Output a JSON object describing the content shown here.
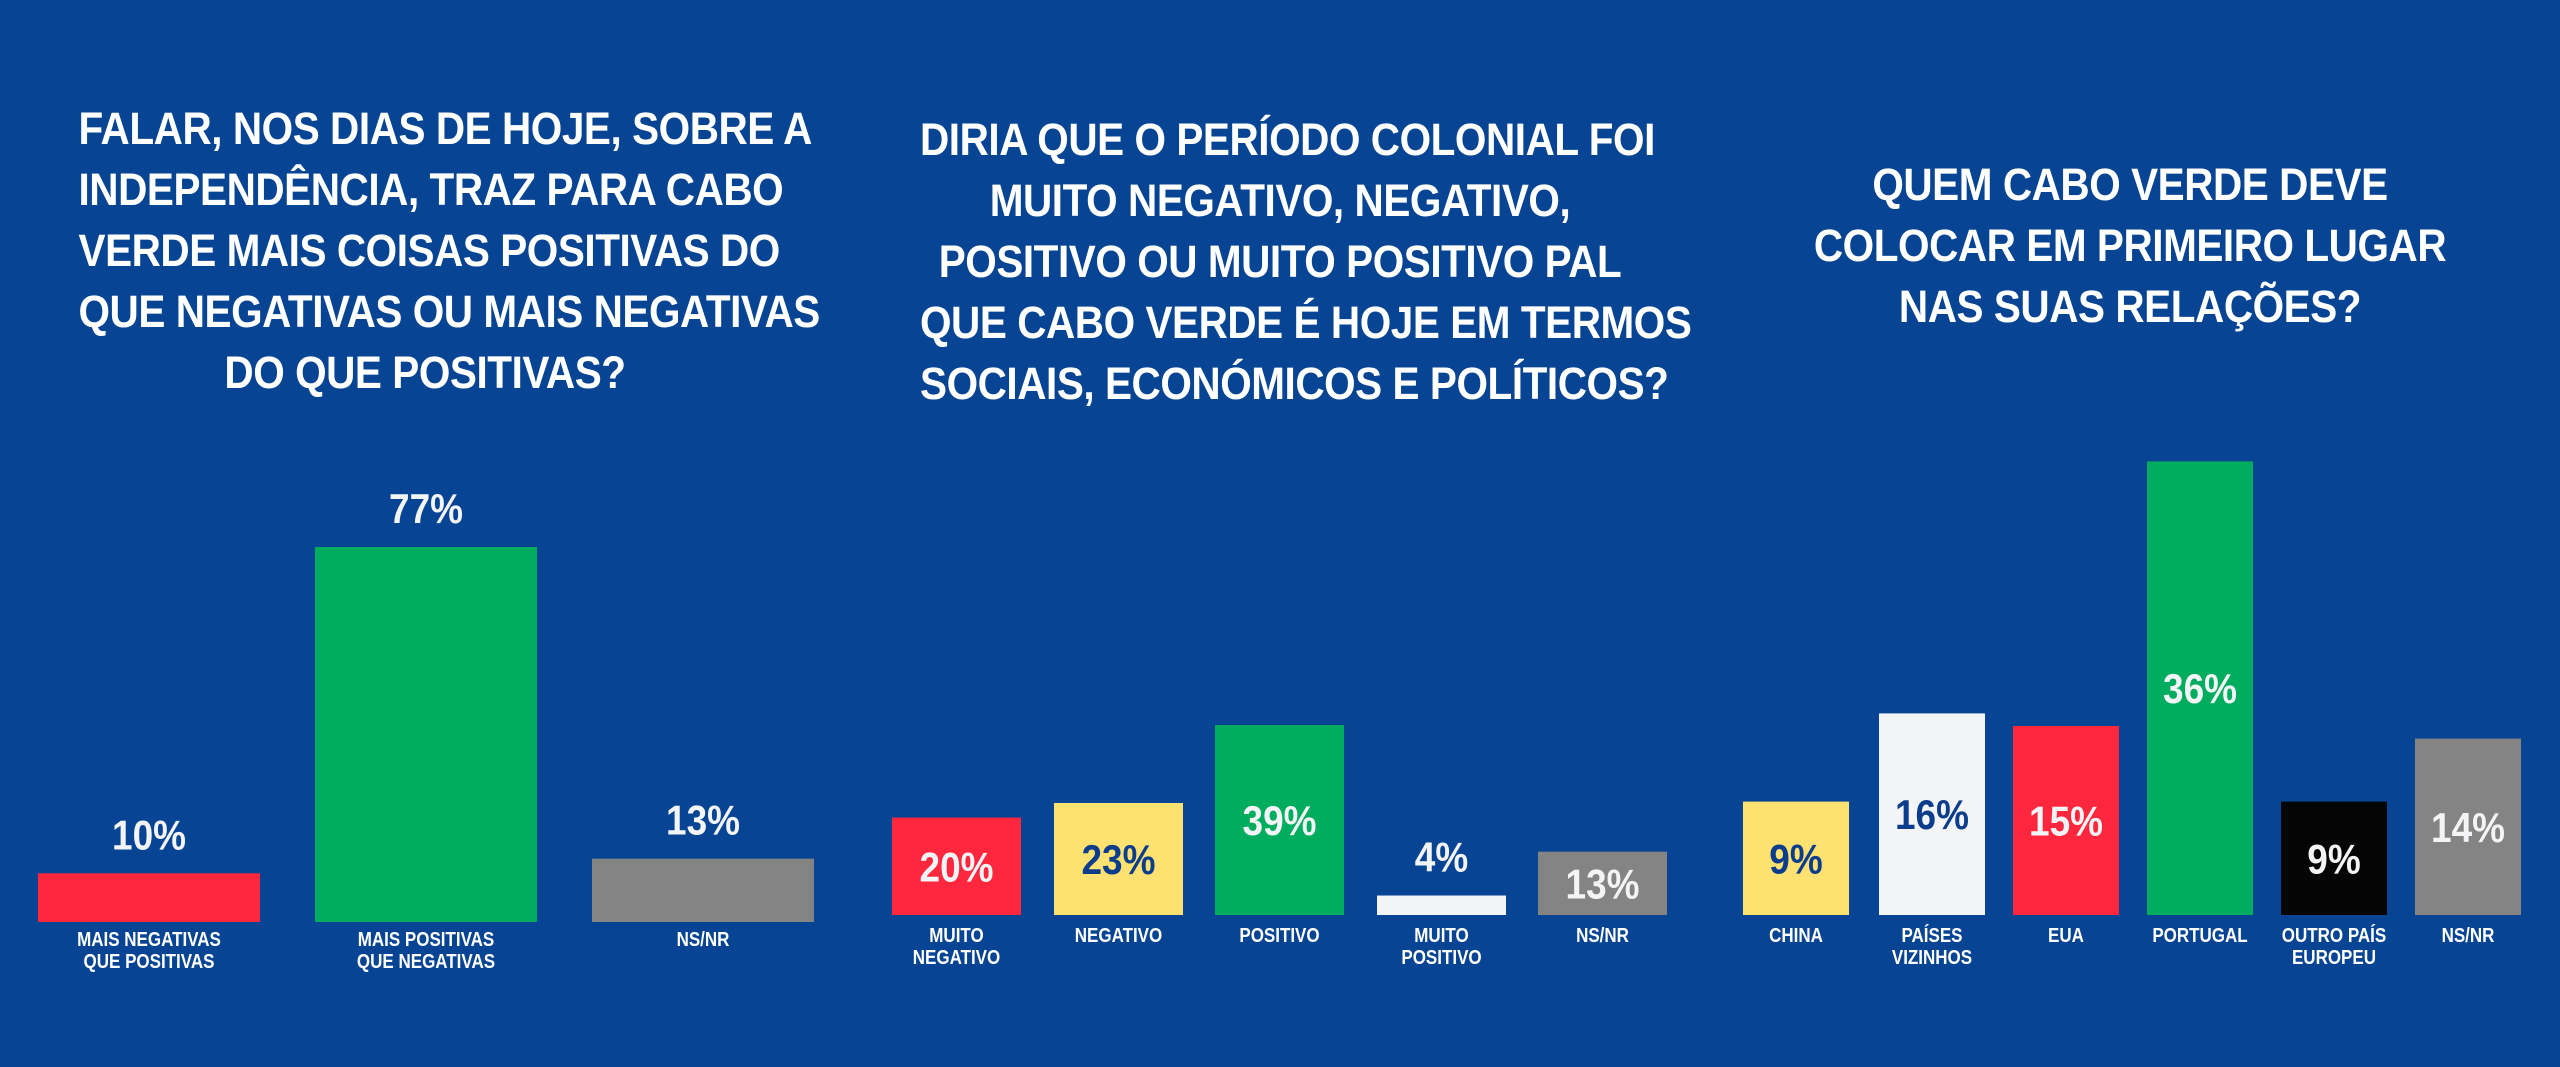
{
  "colors": {
    "background": "#074494",
    "red": "#FF273D",
    "green": "#00AD5F",
    "yellow": "#FEE271",
    "white": "#F3F4F6",
    "gray": "#848484",
    "black": "#050505",
    "dark_label": "#0C3D8C"
  },
  "chart_data": [
    {
      "type": "bar",
      "title_lines": [
        "FALAR, NOS DIAS DE HOJE, SOBRE A",
        "INDEPENDÊNCIA, TRAZ PARA CABO",
        "VERDE MAIS COISAS POSITIVAS DO",
        "QUE NEGATIVAS OU MAIS NEGATIVAS",
        "DO QUE POSITIVAS?"
      ],
      "categories": [
        [
          "MAIS NEGATIVAS",
          "QUE POSITIVAS"
        ],
        [
          "MAIS POSITIVAS",
          "QUE NEGATIVAS"
        ],
        [
          "NS/NR"
        ]
      ],
      "values": [
        10,
        77,
        13
      ],
      "value_labels": [
        "10%",
        "77%",
        "13%"
      ],
      "bar_colors": [
        "red",
        "green",
        "gray"
      ],
      "label_inside": [
        false,
        false,
        false
      ],
      "label_colors": [
        "white",
        "white",
        "white"
      ],
      "ylim": [
        0,
        100
      ]
    },
    {
      "type": "bar",
      "title_lines": [
        "DIRIA QUE O PERÍODO COLONIAL FOI",
        "MUITO NEGATIVO, NEGATIVO,",
        "POSITIVO OU MUITO POSITIVO PAL",
        "QUE CABO VERDE É HOJE EM TERMOS",
        "SOCIAIS, ECONÓMICOS E POLÍTICOS?"
      ],
      "categories": [
        [
          "MUITO",
          "NEGATIVO"
        ],
        [
          "NEGATIVO"
        ],
        [
          "POSITIVO"
        ],
        [
          "MUITO",
          "POSITIVO"
        ],
        [
          "NS/NR"
        ]
      ],
      "values": [
        20,
        23,
        39,
        4,
        13
      ],
      "value_labels": [
        "20%",
        "23%",
        "39%",
        "4%",
        "13%"
      ],
      "bar_colors": [
        "red",
        "yellow",
        "green",
        "white",
        "gray"
      ],
      "label_inside": [
        true,
        true,
        true,
        false,
        true
      ],
      "label_colors": [
        "white",
        "dark_label",
        "white",
        "white",
        "white"
      ],
      "ylim": [
        0,
        100
      ]
    },
    {
      "type": "bar",
      "title_lines": [
        "QUEM CABO VERDE DEVE",
        "COLOCAR EM PRIMEIRO LUGAR",
        "NAS SUAS RELAÇÕES?"
      ],
      "categories": [
        [
          "CHINA"
        ],
        [
          "PAÍSES",
          "VIZINHOS"
        ],
        [
          "EUA"
        ],
        [
          "PORTUGAL"
        ],
        [
          "OUTRO PAÍS",
          "EUROPEU"
        ],
        [
          "NS/NR"
        ]
      ],
      "values": [
        9,
        16,
        15,
        36,
        9,
        14
      ],
      "value_labels": [
        "9%",
        "16%",
        "15%",
        "36%",
        "9%",
        "14%"
      ],
      "bar_colors": [
        "yellow",
        "white",
        "red",
        "green",
        "black",
        "gray"
      ],
      "label_inside": [
        true,
        true,
        true,
        true,
        true,
        true
      ],
      "label_colors": [
        "dark_label",
        "dark_label",
        "white",
        "white",
        "white",
        "white"
      ],
      "ylim": [
        0,
        100
      ]
    }
  ]
}
